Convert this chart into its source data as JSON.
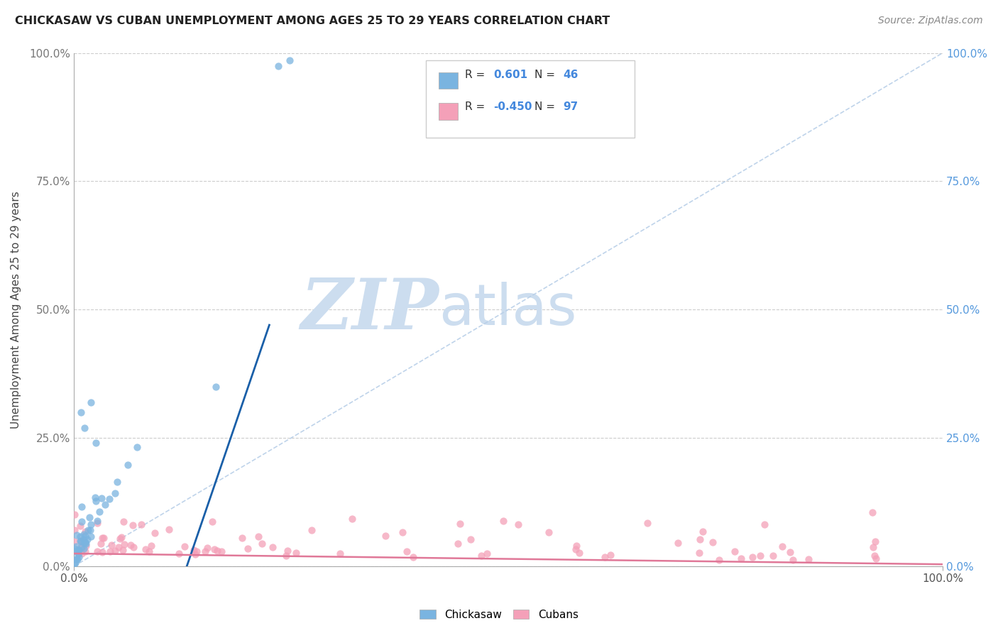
{
  "title": "CHICKASAW VS CUBAN UNEMPLOYMENT AMONG AGES 25 TO 29 YEARS CORRELATION CHART",
  "source": "Source: ZipAtlas.com",
  "ylabel": "Unemployment Among Ages 25 to 29 years",
  "xlim": [
    0.0,
    1.0
  ],
  "ylim": [
    0.0,
    1.0
  ],
  "xtick_labels": [
    "0.0%",
    "100.0%"
  ],
  "ytick_labels": [
    "0.0%",
    "25.0%",
    "50.0%",
    "75.0%",
    "100.0%"
  ],
  "ytick_positions": [
    0.0,
    0.25,
    0.5,
    0.75,
    1.0
  ],
  "right_ytick_color": "#5599dd",
  "left_ytick_color": "#777777",
  "chickasaw_color": "#7ab4e0",
  "cuban_color": "#f4a0b8",
  "chickasaw_line_color": "#1a5fa8",
  "cuban_line_color": "#e07898",
  "diagonal_line_color": "#b8cfe8",
  "r_chickasaw": 0.601,
  "n_chickasaw": 46,
  "r_cuban": -0.45,
  "n_cuban": 97,
  "watermark_zip": "ZIP",
  "watermark_atlas": "atlas",
  "watermark_color": "#ccddef",
  "legend_labels": [
    "Chickasaw",
    "Cubans"
  ],
  "chick_line_x0": 0.13,
  "chick_line_x1": 0.225,
  "chick_line_y0": 0.0,
  "chick_line_y1": 0.47,
  "cuban_line_x0": 0.0,
  "cuban_line_x1": 1.0,
  "cuban_line_y0": 0.025,
  "cuban_line_y1": 0.004
}
